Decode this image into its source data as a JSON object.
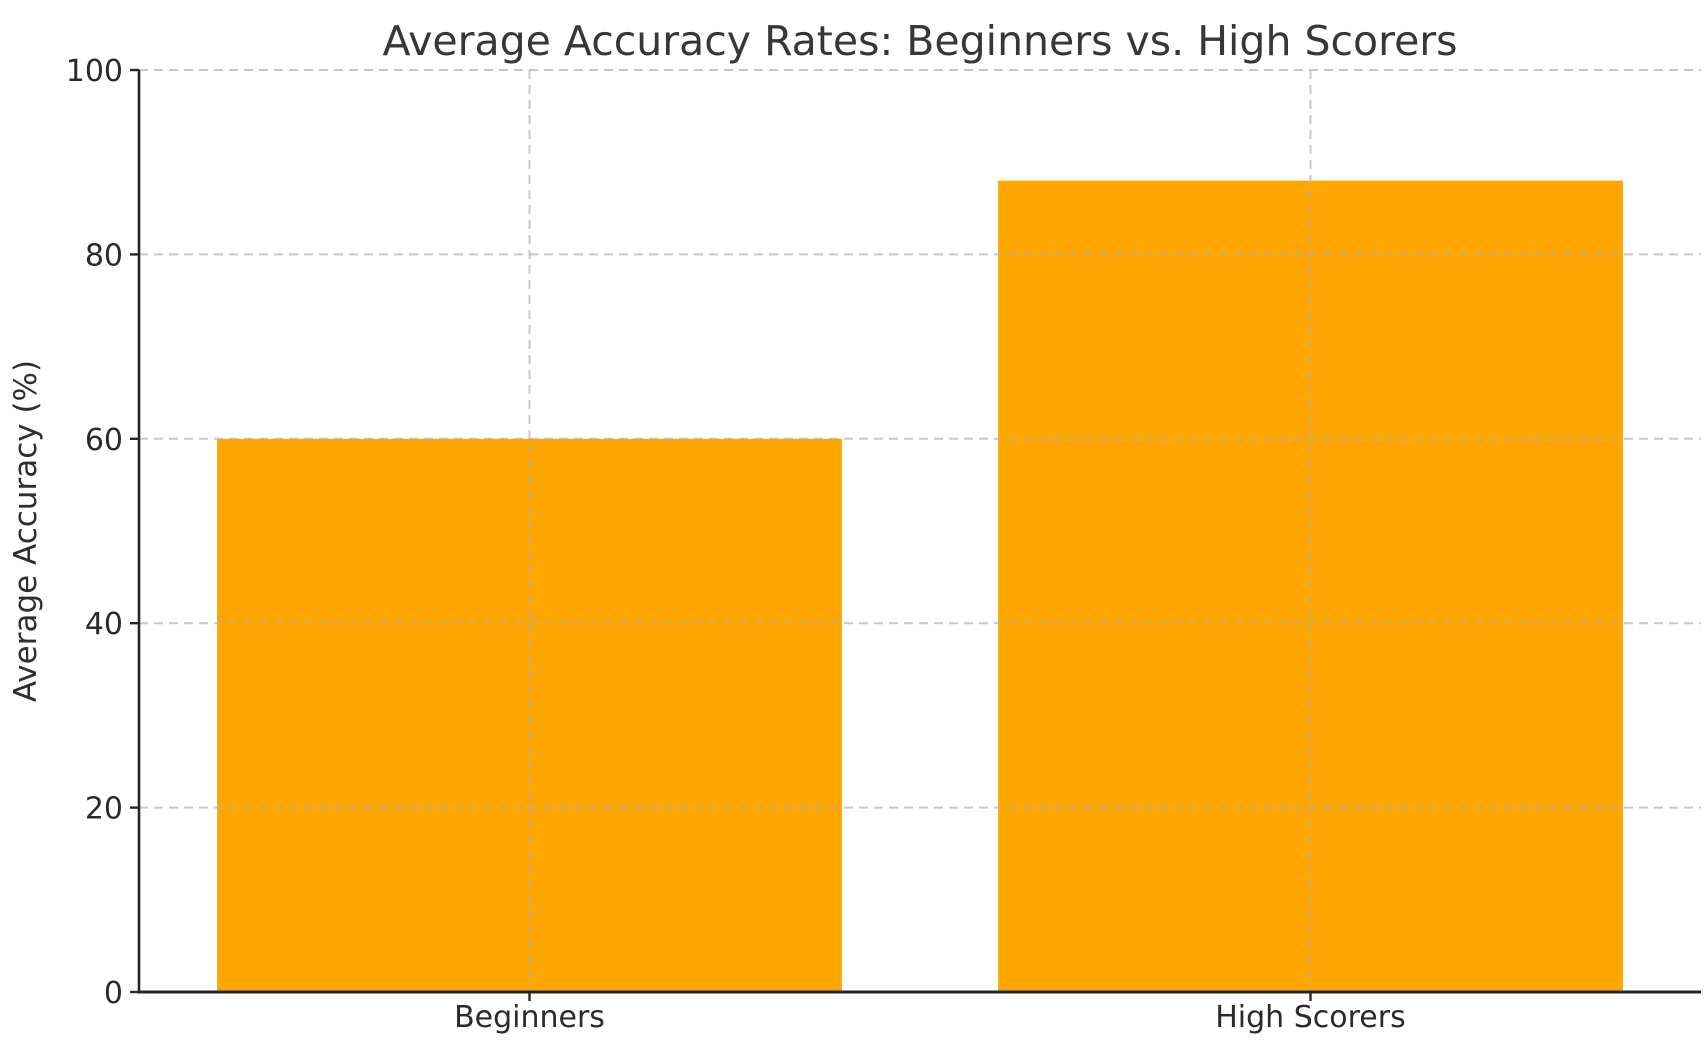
{
  "chart_data": {
    "type": "bar",
    "title": "Average Accuracy Rates: Beginners vs. High Scorers",
    "xlabel": "",
    "ylabel": "Average Accuracy (%)",
    "categories": [
      "Beginners",
      "High Scorers"
    ],
    "values": [
      60,
      88
    ],
    "ylim": [
      0,
      100
    ],
    "yticks": [
      0,
      20,
      40,
      60,
      80,
      100
    ],
    "bar_color": "#FFA500",
    "bar_width_fraction": 0.8,
    "grid": {
      "visible": true,
      "linestyle": "dashed",
      "color": "#b0b0b0",
      "alpha": 0.7,
      "drawn_over_bars": true,
      "axes": "both"
    },
    "legend": "none",
    "spine_color": "#262626",
    "spines_visible": [
      "left",
      "bottom"
    ],
    "background_color": "#ffffff"
  }
}
